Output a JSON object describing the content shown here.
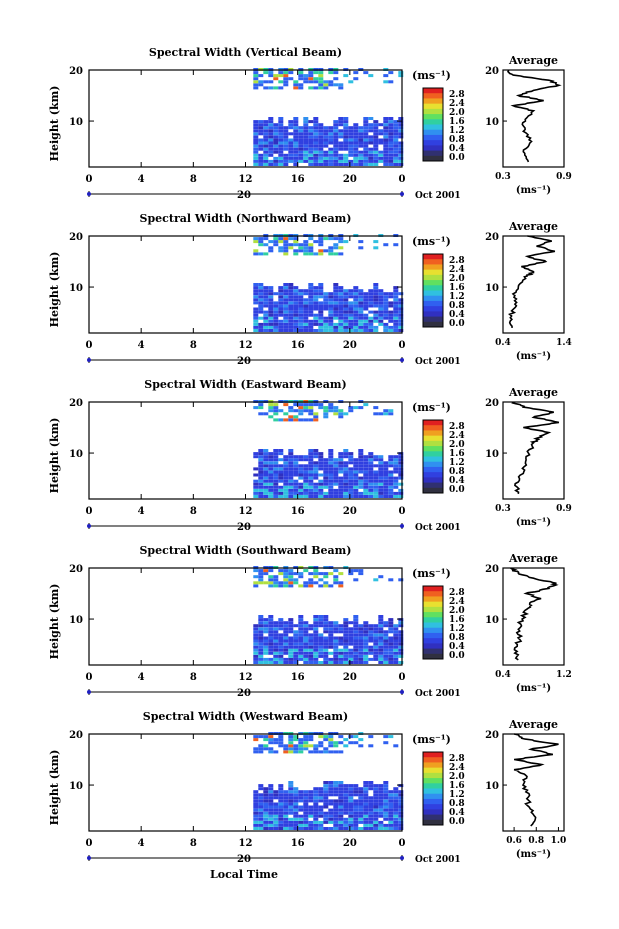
{
  "figure": {
    "xlabel": "Local Time",
    "date_suffix": "Oct 2001",
    "day_label": "20",
    "height_axis_label": "Height (km)",
    "unit_label": "(ms⁻¹)",
    "average_title": "Average"
  },
  "colorbar": {
    "ticks": [
      "2.8",
      "2.4",
      "2.0",
      "1.6",
      "1.2",
      "0.8",
      "0.4",
      "0.0"
    ],
    "colors": [
      "#e02020",
      "#f06020",
      "#f0a020",
      "#e8e030",
      "#b0e040",
      "#60e060",
      "#30d0a0",
      "#30c0e0",
      "#3090f0",
      "#3060f0",
      "#3040e0",
      "#3030c0",
      "#303070",
      "#303040"
    ]
  },
  "chart_data": [
    {
      "type": "heatmap",
      "title": "Spectral Width (Vertical Beam)",
      "xlabel": "Local Time",
      "ylabel": "Height (km)",
      "x_ticks": [
        "0",
        "4",
        "8",
        "12",
        "16",
        "20",
        "0"
      ],
      "y_ticks": [
        "20",
        "10"
      ],
      "xlim": [
        0,
        24
      ],
      "ylim": [
        1,
        20
      ],
      "data_start_hour": 12.6,
      "colorbar_range": [
        0.0,
        2.8
      ],
      "profile": {
        "title": "Average",
        "xlabel": "(ms⁻¹)",
        "x_ticks": [
          "0.3",
          "0.9"
        ],
        "y_ticks": [
          "20",
          "10"
        ],
        "xlim": [
          0.3,
          0.9
        ],
        "height": [
          2,
          4,
          6,
          8,
          10,
          12,
          13,
          14,
          15,
          16,
          17,
          18,
          19,
          20
        ],
        "value": [
          0.55,
          0.5,
          0.58,
          0.5,
          0.52,
          0.6,
          0.4,
          0.7,
          0.45,
          0.6,
          0.85,
          0.75,
          0.4,
          0.35
        ]
      }
    },
    {
      "type": "heatmap",
      "title": "Spectral Width (Northward Beam)",
      "xlabel": "Local Time",
      "ylabel": "Height (km)",
      "x_ticks": [
        "0",
        "4",
        "8",
        "12",
        "16",
        "20",
        "0"
      ],
      "y_ticks": [
        "20",
        "10"
      ],
      "xlim": [
        0,
        24
      ],
      "ylim": [
        1,
        20
      ],
      "data_start_hour": 12.6,
      "colorbar_range": [
        0.0,
        2.8
      ],
      "profile": {
        "title": "Average",
        "xlabel": "(ms⁻¹)",
        "x_ticks": [
          "0.4",
          "1.4"
        ],
        "y_ticks": [
          "20",
          "10"
        ],
        "xlim": [
          0.4,
          1.4
        ],
        "height": [
          2,
          4,
          6,
          8,
          10,
          12,
          13,
          14,
          15,
          16,
          17,
          18,
          19,
          20
        ],
        "value": [
          0.55,
          0.52,
          0.6,
          0.58,
          0.65,
          0.75,
          0.9,
          0.7,
          1.1,
          0.8,
          1.25,
          0.95,
          1.2,
          0.8
        ]
      }
    },
    {
      "type": "heatmap",
      "title": "Spectral Width (Eastward Beam)",
      "xlabel": "Local Time",
      "ylabel": "Height (km)",
      "x_ticks": [
        "0",
        "4",
        "8",
        "12",
        "16",
        "20",
        "0"
      ],
      "y_ticks": [
        "20",
        "10"
      ],
      "xlim": [
        0,
        24
      ],
      "ylim": [
        1,
        20
      ],
      "data_start_hour": 12.6,
      "colorbar_range": [
        0.0,
        2.8
      ],
      "profile": {
        "title": "Average",
        "xlabel": "(ms⁻¹)",
        "x_ticks": [
          "0.3",
          "0.9"
        ],
        "y_ticks": [
          "20",
          "10"
        ],
        "xlim": [
          0.3,
          0.9
        ],
        "height": [
          2,
          4,
          6,
          8,
          10,
          12,
          13,
          14,
          15,
          16,
          17,
          18,
          19,
          20
        ],
        "value": [
          0.45,
          0.42,
          0.5,
          0.52,
          0.55,
          0.6,
          0.65,
          0.75,
          0.5,
          0.85,
          0.6,
          0.8,
          0.5,
          0.4
        ]
      }
    },
    {
      "type": "heatmap",
      "title": "Spectral Width (Southward Beam)",
      "xlabel": "Local Time",
      "ylabel": "Height (km)",
      "x_ticks": [
        "0",
        "4",
        "8",
        "12",
        "16",
        "20",
        "0"
      ],
      "y_ticks": [
        "20",
        "10"
      ],
      "xlim": [
        0,
        24
      ],
      "ylim": [
        1,
        20
      ],
      "data_start_hour": 12.6,
      "colorbar_range": [
        0.0,
        2.8
      ],
      "profile": {
        "title": "Average",
        "xlabel": "(ms⁻¹)",
        "x_ticks": [
          "0.4",
          "1.2"
        ],
        "y_ticks": [
          "20",
          "10"
        ],
        "xlim": [
          0.4,
          1.2
        ],
        "height": [
          2,
          4,
          6,
          8,
          10,
          12,
          13,
          14,
          15,
          16,
          17,
          18,
          19,
          20
        ],
        "value": [
          0.6,
          0.55,
          0.62,
          0.6,
          0.65,
          0.72,
          0.75,
          0.9,
          0.7,
          1.0,
          1.1,
          0.8,
          0.6,
          0.5
        ]
      }
    },
    {
      "type": "heatmap",
      "title": "Spectral Width (Westward Beam)",
      "xlabel": "Local Time",
      "ylabel": "Height (km)",
      "x_ticks": [
        "0",
        "4",
        "8",
        "12",
        "16",
        "20",
        "0"
      ],
      "y_ticks": [
        "20",
        "10"
      ],
      "xlim": [
        0,
        24
      ],
      "ylim": [
        1,
        20
      ],
      "data_start_hour": 12.6,
      "colorbar_range": [
        0.0,
        2.8
      ],
      "profile": {
        "title": "Average",
        "xlabel": "(ms⁻¹)",
        "x_ticks": [
          "0.6",
          "0.8",
          "1.0"
        ],
        "y_ticks": [
          "20",
          "10"
        ],
        "xlim": [
          0.5,
          1.05
        ],
        "height": [
          2,
          4,
          6,
          8,
          10,
          12,
          13,
          14,
          15,
          16,
          17,
          18,
          19,
          20
        ],
        "value": [
          0.75,
          0.78,
          0.72,
          0.74,
          0.68,
          0.7,
          0.6,
          0.85,
          0.6,
          0.95,
          0.75,
          1.0,
          0.7,
          0.6
        ]
      }
    }
  ]
}
